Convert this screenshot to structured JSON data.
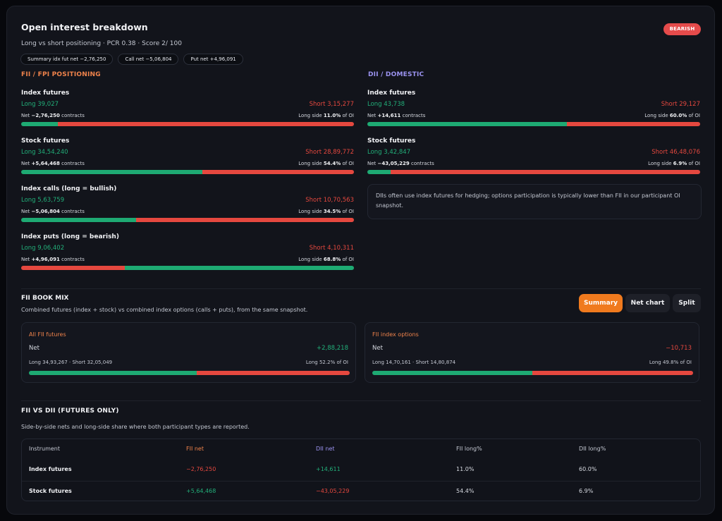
{
  "header": {
    "title": "Open interest breakdown",
    "subtitle": "Long vs short positioning · PCR 0.38 · Score 2/ 100",
    "badge": "BEARISH",
    "chips": [
      "Summary idx fut net −2,76,250",
      "Call net −5,06,804",
      "Put net +4,96,091"
    ]
  },
  "fii": {
    "heading": "FII / FPI POSITIONING",
    "blocks": [
      {
        "name": "Index futures",
        "long": "Long 39,027",
        "short": "Short 3,15,277",
        "net_prefix": "Net ",
        "net": "−2,76,250",
        "net_suffix": " contracts",
        "side_prefix": "Long side ",
        "side": "11.0%",
        "side_suffix": " of OI",
        "long_frac": 0.11,
        "net_sign": "neg",
        "bar_first": "long"
      },
      {
        "name": "Stock futures",
        "long": "Long 34,54,240",
        "short": "Short 28,89,772",
        "net_prefix": "Net ",
        "net": "+5,64,468",
        "net_suffix": " contracts",
        "side_prefix": "Long side ",
        "side": "54.4%",
        "side_suffix": " of OI",
        "long_frac": 0.544,
        "net_sign": "pos",
        "bar_first": "long"
      },
      {
        "name": "Index calls (long = bullish)",
        "long": "Long 5,63,759",
        "short": "Short 10,70,563",
        "net_prefix": "Net ",
        "net": "−5,06,804",
        "net_suffix": " contracts",
        "side_prefix": "Long side ",
        "side": "34.5%",
        "side_suffix": " of OI",
        "long_frac": 0.345,
        "net_sign": "neg",
        "bar_first": "long"
      },
      {
        "name": "Index puts (long = bearish)",
        "long": "Long 9,06,402",
        "short": "Short 4,10,311",
        "net_prefix": "Net ",
        "net": "+4,96,091",
        "net_suffix": " contracts",
        "side_prefix": "Long side ",
        "side": "68.8%",
        "side_suffix": " of OI",
        "long_frac": 0.688,
        "net_sign": "pos",
        "bar_first": "short"
      }
    ]
  },
  "dii": {
    "heading": "DII / DOMESTIC",
    "blocks": [
      {
        "name": "Index futures",
        "long": "Long 43,738",
        "short": "Short 29,127",
        "net_prefix": "Net ",
        "net": "+14,611",
        "net_suffix": " contracts",
        "side_prefix": "Long side ",
        "side": "60.0%",
        "side_suffix": " of OI",
        "long_frac": 0.6,
        "net_sign": "pos",
        "bar_first": "long"
      },
      {
        "name": "Stock futures",
        "long": "Long 3,42,847",
        "short": "Short 46,48,076",
        "net_prefix": "Net ",
        "net": "−43,05,229",
        "net_suffix": " contracts",
        "side_prefix": "Long side ",
        "side": "6.9%",
        "side_suffix": " of OI",
        "long_frac": 0.069,
        "net_sign": "neg",
        "bar_first": "long"
      }
    ],
    "note": "DIIs often use index futures for hedging; options participation is typically lower than FII in our participant OI snapshot."
  },
  "book_mix": {
    "title": "FII BOOK MIX",
    "subtitle": "Combined futures (index + stock) vs combined index options (calls + puts), from the same snapshot.",
    "buttons": [
      "Summary",
      "Net chart",
      "Split"
    ],
    "active_button": "Summary",
    "cards": [
      {
        "title": "All FII futures",
        "net_label": "Net",
        "net": "+2,88,218",
        "net_sign": "pos",
        "ls": "Long 34,93,267 · Short 32,05,049",
        "side": "Long 52.2% of OI",
        "long_frac": 0.522
      },
      {
        "title": "FII index options",
        "net_label": "Net",
        "net": "−10,713",
        "net_sign": "neg",
        "ls": "Long 14,70,161 · Short 14,80,874",
        "side": "Long 49.8% of OI",
        "long_frac": 0.498
      }
    ]
  },
  "fii_vs_dii": {
    "title": "FII VS DII (FUTURES ONLY)",
    "subtitle": "Side-by-side nets and long-side share where both participant types are reported.",
    "headers": [
      "Instrument",
      "FII net",
      "DII net",
      "FII long%",
      "DII long%"
    ],
    "rows": [
      {
        "instrument": "Index futures",
        "fii_net": "−2,76,250",
        "fii_sign": "neg",
        "dii_net": "+14,611",
        "dii_sign": "pos",
        "fii_long": "11.0%",
        "dii_long": "60.0%"
      },
      {
        "instrument": "Stock futures",
        "fii_net": "+5,64,468",
        "fii_sign": "pos",
        "dii_net": "−43,05,229",
        "dii_sign": "neg",
        "fii_long": "54.4%",
        "dii_long": "6.9%"
      }
    ]
  },
  "colors": {
    "long": "#1eaa73",
    "short": "#e5483f",
    "fii": "#f0834b",
    "dii": "#9b93f0",
    "accent": "#f07a1e"
  }
}
